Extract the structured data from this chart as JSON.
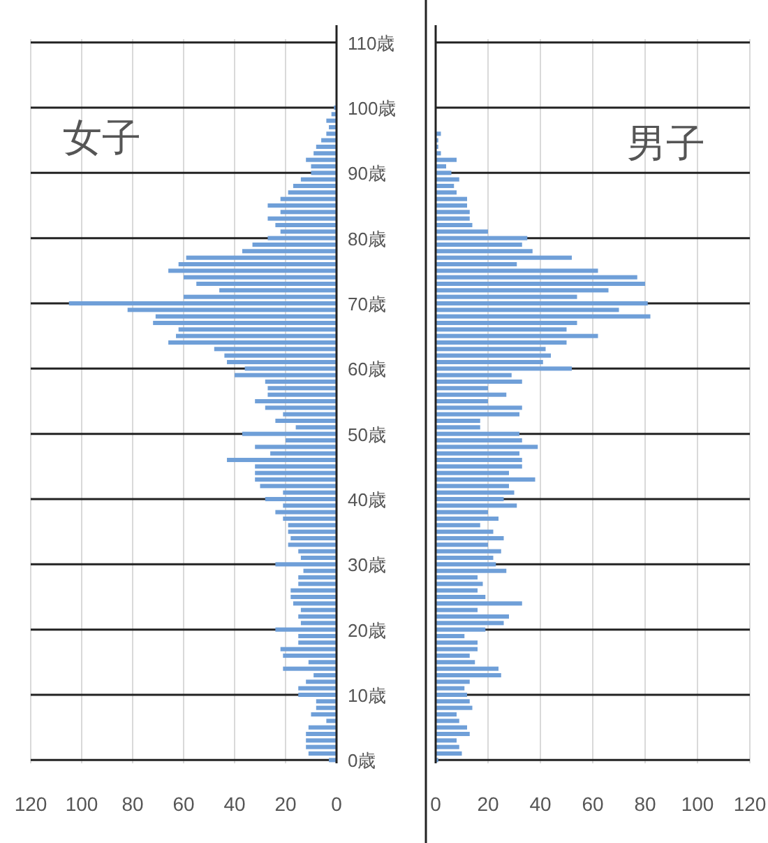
{
  "chart_data": [
    {
      "type": "bar",
      "orientation": "horizontal",
      "title": "女子",
      "categories": [
        "110歳",
        null,
        null,
        null,
        null,
        null,
        null,
        null,
        null,
        null,
        "100歳",
        null,
        null,
        null,
        null,
        null,
        null,
        null,
        null,
        null,
        "90歳",
        null,
        null,
        null,
        null,
        null,
        null,
        null,
        null,
        null,
        "80歳",
        null,
        null,
        null,
        null,
        null,
        null,
        null,
        null,
        null,
        "70歳",
        null,
        null,
        null,
        null,
        null,
        null,
        null,
        null,
        null,
        "60歳",
        null,
        null,
        null,
        null,
        null,
        null,
        null,
        null,
        null,
        "50歳",
        null,
        null,
        null,
        null,
        null,
        null,
        null,
        null,
        null,
        "40歳",
        null,
        null,
        null,
        null,
        null,
        null,
        null,
        null,
        null,
        "30歳",
        null,
        null,
        null,
        null,
        null,
        null,
        null,
        null,
        null,
        "20歳",
        null,
        null,
        null,
        null,
        null,
        null,
        null,
        null,
        null,
        "10歳",
        null,
        null,
        null,
        null,
        null,
        null,
        null,
        null,
        null,
        "0歳"
      ],
      "series": [
        {
          "color": "#6f9fd8",
          "values": [
            0,
            0,
            0,
            0,
            0,
            0,
            0,
            0,
            0,
            0,
            1,
            2,
            4,
            3,
            4,
            6,
            8,
            9,
            12,
            10,
            10,
            14,
            17,
            19,
            22,
            27,
            22,
            27,
            24,
            22,
            27,
            33,
            37,
            59,
            62,
            66,
            60,
            55,
            46,
            60,
            105,
            82,
            71,
            72,
            62,
            63,
            66,
            48,
            44,
            43,
            36,
            40,
            28,
            27,
            27,
            32,
            28,
            21,
            24,
            16,
            37,
            20,
            32,
            26,
            43,
            32,
            32,
            32,
            30,
            21,
            28,
            21,
            24,
            21,
            19,
            19,
            18,
            19,
            15,
            14,
            24,
            13,
            15,
            15,
            18,
            18,
            17,
            14,
            15,
            14,
            24,
            15,
            15,
            22,
            21,
            11,
            21,
            9,
            12,
            15,
            15,
            8,
            8,
            10,
            4,
            11,
            12,
            12,
            12,
            11,
            3
          ]
        }
      ],
      "xlim": [
        120,
        0
      ],
      "xticks": [
        120,
        100,
        80,
        60,
        40,
        20,
        0
      ],
      "grid": true
    },
    {
      "type": "bar",
      "orientation": "horizontal",
      "title": "男子",
      "categories": [
        null,
        null,
        null,
        null,
        null,
        null,
        null,
        null,
        null,
        null,
        null,
        null,
        null,
        null,
        null,
        null,
        null,
        null,
        null,
        null,
        null,
        null,
        null,
        null,
        null,
        null,
        null,
        null,
        null,
        null,
        null,
        null,
        null,
        null,
        null,
        null,
        null,
        null,
        null,
        null,
        null,
        null,
        null,
        null,
        null,
        null,
        null,
        null,
        null,
        null,
        null,
        null,
        null,
        null,
        null,
        null,
        null,
        null,
        null,
        null,
        null,
        null,
        null,
        null,
        null,
        null,
        null,
        null,
        null,
        null,
        null,
        null,
        null,
        null,
        null,
        null,
        null,
        null,
        null,
        null,
        null,
        null,
        null,
        null,
        null,
        null,
        null,
        null,
        null,
        null,
        null,
        null,
        null,
        null,
        null,
        null,
        null,
        null,
        null,
        null,
        null,
        null,
        null,
        null,
        null,
        null,
        null,
        null,
        null,
        null,
        null
      ],
      "series": [
        {
          "color": "#6f9fd8",
          "values": [
            0,
            0,
            0,
            0,
            0,
            0,
            0,
            0,
            0,
            0,
            0,
            0,
            0,
            0,
            2,
            1,
            1,
            2,
            8,
            4,
            6,
            9,
            7,
            8,
            12,
            12,
            13,
            13,
            14,
            20,
            35,
            33,
            37,
            52,
            31,
            62,
            77,
            80,
            66,
            54,
            81,
            70,
            82,
            54,
            50,
            62,
            50,
            42,
            44,
            41,
            52,
            29,
            33,
            20,
            27,
            20,
            33,
            32,
            17,
            17,
            32,
            33,
            39,
            32,
            33,
            33,
            28,
            38,
            28,
            30,
            26,
            31,
            20,
            24,
            17,
            22,
            26,
            20,
            25,
            22,
            23,
            27,
            16,
            18,
            16,
            19,
            33,
            16,
            28,
            26,
            19,
            11,
            16,
            16,
            13,
            15,
            24,
            25,
            13,
            11,
            12,
            13,
            14,
            8,
            9,
            12,
            13,
            8,
            9,
            10,
            1
          ]
        }
      ],
      "xlim": [
        0,
        120
      ],
      "xticks": [
        0,
        20,
        40,
        60,
        80,
        100,
        120
      ],
      "grid": true
    }
  ]
}
